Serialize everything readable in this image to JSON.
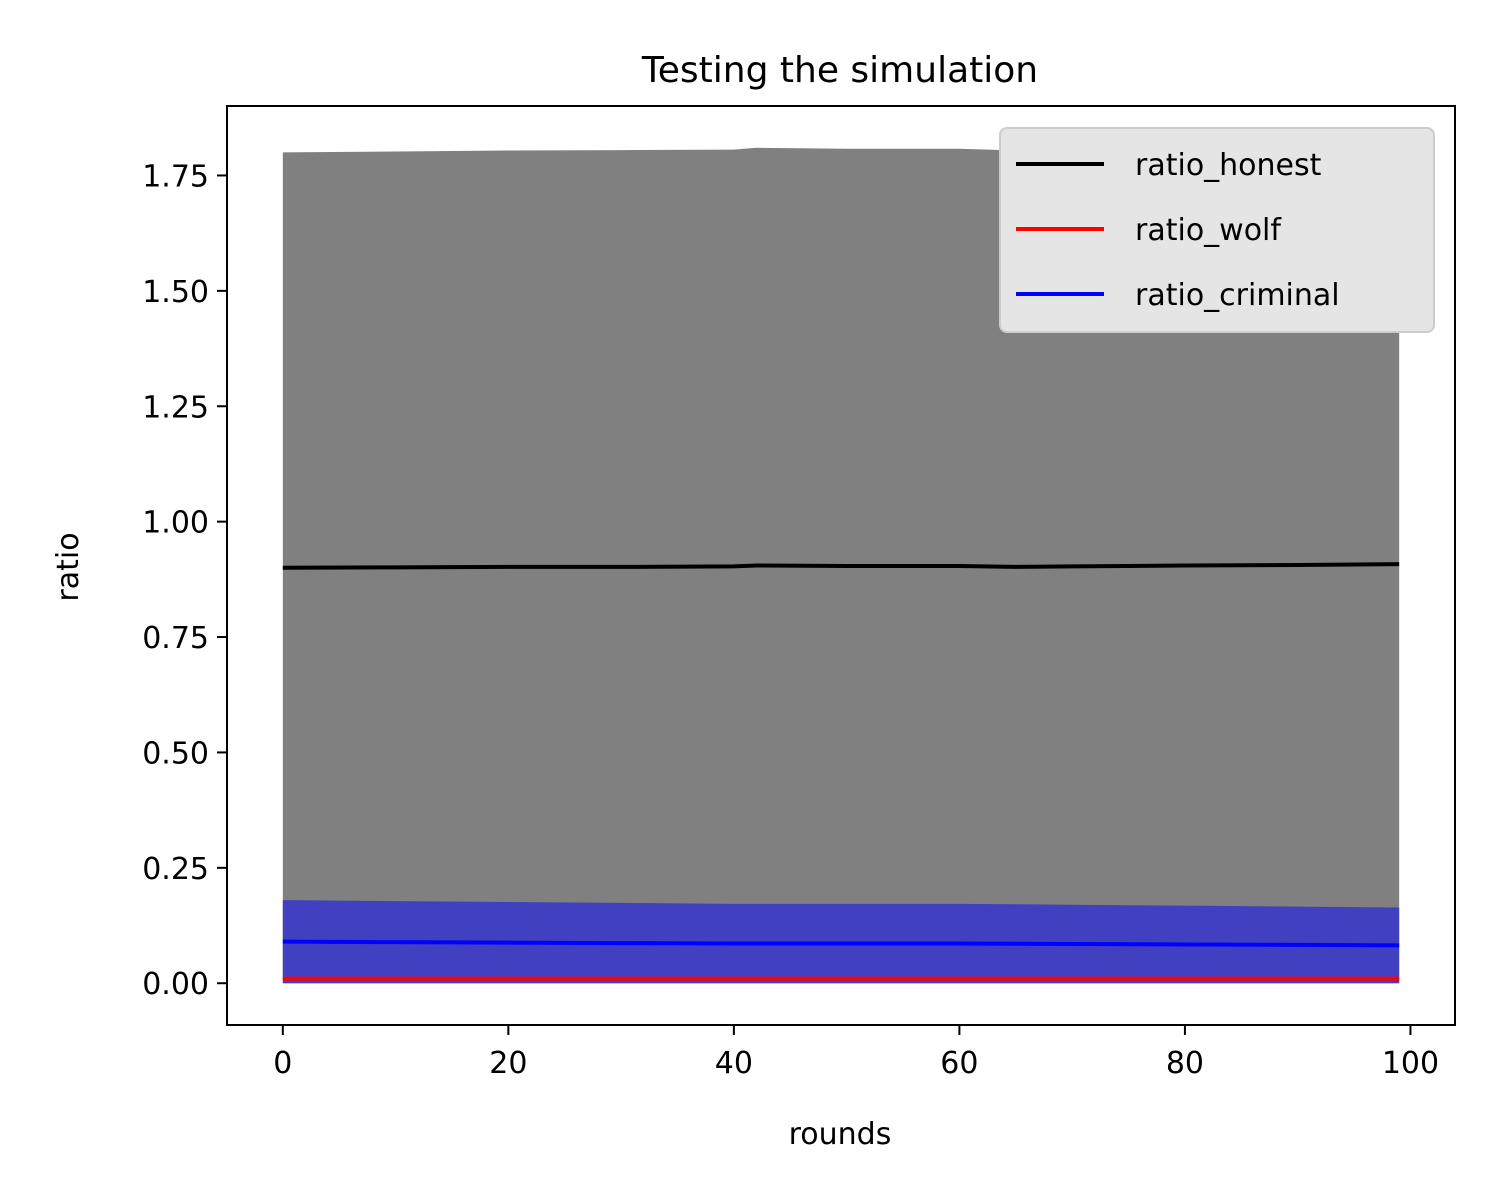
{
  "chart_data": {
    "type": "line",
    "title": "Testing the simulation",
    "xlabel": "rounds",
    "ylabel": "ratio",
    "xlim": [
      -4.95,
      103.95
    ],
    "ylim": [
      -0.0905,
      1.9005
    ],
    "x_ticks": [
      0,
      20,
      40,
      60,
      80,
      100
    ],
    "y_ticks": [
      0.0,
      0.25,
      0.5,
      0.75,
      1.0,
      1.25,
      1.5,
      1.75
    ],
    "x_tick_labels": [
      "0",
      "20",
      "40",
      "60",
      "80",
      "100"
    ],
    "y_tick_labels": [
      "0.00",
      "0.25",
      "0.50",
      "0.75",
      "1.00",
      "1.25",
      "1.50",
      "1.75"
    ],
    "grid": false,
    "legend_position": "top-right",
    "series": [
      {
        "name": "ratio_honest",
        "color": "#000000",
        "x": [
          0,
          10,
          20,
          30,
          40,
          42,
          50,
          60,
          65,
          70,
          80,
          90,
          99
        ],
        "values": [
          0.9,
          0.901,
          0.902,
          0.902,
          0.903,
          0.905,
          0.904,
          0.904,
          0.902,
          0.903,
          0.905,
          0.906,
          0.908
        ],
        "band_lower": [
          0.0,
          0.0,
          0.0,
          0.0,
          0.0,
          0.0,
          0.0,
          0.0,
          0.0,
          0.0,
          0.0,
          0.0,
          0.0
        ],
        "band_upper": [
          1.8,
          1.802,
          1.804,
          1.805,
          1.806,
          1.81,
          1.808,
          1.808,
          1.804,
          1.806,
          1.81,
          1.812,
          1.816
        ],
        "band_color": "#808080"
      },
      {
        "name": "ratio_wolf",
        "color": "#ff0000",
        "x": [
          0,
          99
        ],
        "values": [
          0.01,
          0.01
        ]
      },
      {
        "name": "ratio_criminal",
        "color": "#0000ff",
        "x": [
          0,
          10,
          20,
          30,
          40,
          50,
          60,
          70,
          80,
          90,
          99
        ],
        "values": [
          0.09,
          0.089,
          0.088,
          0.087,
          0.086,
          0.086,
          0.086,
          0.085,
          0.084,
          0.083,
          0.082
        ],
        "band_lower": [
          0.0,
          0.0,
          0.0,
          0.0,
          0.0,
          0.0,
          0.0,
          0.0,
          0.0,
          0.0,
          0.0
        ],
        "band_upper": [
          0.18,
          0.178,
          0.176,
          0.174,
          0.172,
          0.172,
          0.172,
          0.17,
          0.168,
          0.166,
          0.164
        ],
        "band_color": "#4040c0"
      }
    ]
  }
}
